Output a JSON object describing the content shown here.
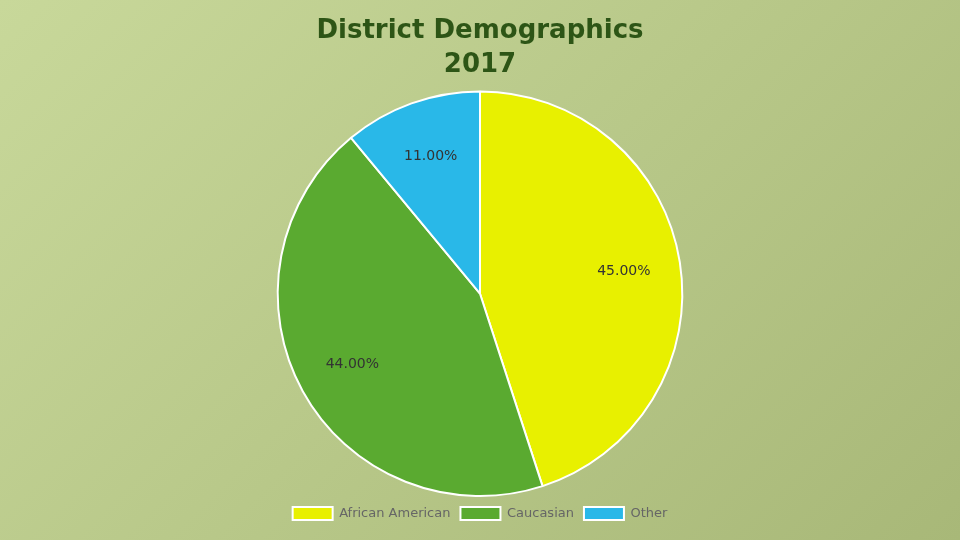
{
  "chart_data": {
    "type": "pie",
    "title": "District Demographics",
    "subtitle": "2017",
    "categories": [
      "African American",
      "Caucasian",
      "Other"
    ],
    "values": [
      45.0,
      44.0,
      11.0
    ],
    "value_labels": [
      "45.00%",
      "44.00%",
      "11.00%"
    ],
    "colors": [
      "#e8f000",
      "#5aaa30",
      "#29b8e8"
    ],
    "data_labels": true,
    "legend": "bottom"
  }
}
